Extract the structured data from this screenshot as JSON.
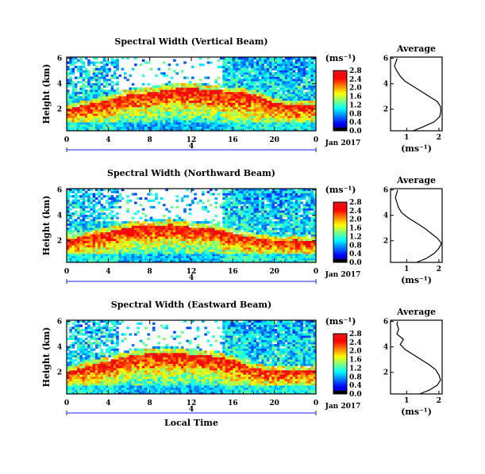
{
  "chart_data": [
    {
      "type": "heatmap",
      "title": "Spectral Width (Vertical Beam)",
      "ylabel": "Height (km)",
      "xticks": [
        "0",
        "4",
        "8",
        "12",
        "16",
        "20",
        "0"
      ],
      "xlim": [
        0,
        24
      ],
      "yticks": [
        "2",
        "4",
        "6"
      ],
      "ylim": [
        0.3,
        6.1
      ],
      "date_label": "Jan 2017",
      "day_label": "4",
      "colorbar": {
        "unit": "(ms⁻¹)",
        "ticks": [
          "0.0",
          "0.4",
          "0.8",
          "1.2",
          "1.6",
          "2.0",
          "2.4",
          "2.8"
        ],
        "range": [
          0,
          2.8
        ]
      },
      "top_y": [
        2.0,
        2.4,
        2.7,
        3.2,
        3.3,
        3.6,
        3.7,
        3.5,
        3.4,
        3.2,
        2.5,
        2.3,
        2.4
      ],
      "average_profile": {
        "title": "Average",
        "xlabel": "(ms⁻¹)",
        "xticks": [
          "1",
          "2"
        ],
        "xlim": [
          0.5,
          2.1
        ],
        "yticks": [
          "2",
          "4",
          "6"
        ],
        "height": [
          0.3,
          0.6,
          1.0,
          1.4,
          1.8,
          2.2,
          2.6,
          3.0,
          3.4,
          3.8,
          4.2,
          4.6,
          5.0,
          5.4,
          5.8,
          6.0
        ],
        "width": [
          1.2,
          1.5,
          1.85,
          2.02,
          2.06,
          2.05,
          1.95,
          1.7,
          1.45,
          1.2,
          0.95,
          0.8,
          0.7,
          0.62,
          0.68,
          0.7
        ]
      }
    },
    {
      "type": "heatmap",
      "title": "Spectral Width (Northward Beam)",
      "ylabel": "Height (km)",
      "xticks": [
        "0",
        "4",
        "8",
        "12",
        "16",
        "20",
        "0"
      ],
      "xlim": [
        0,
        24
      ],
      "yticks": [
        "2",
        "4",
        "6"
      ],
      "ylim": [
        0.3,
        6.1
      ],
      "date_label": "Jan 2017",
      "day_label": "4",
      "colorbar": {
        "unit": "(ms⁻¹)",
        "ticks": [
          "0.0",
          "0.4",
          "0.8",
          "1.2",
          "1.6",
          "2.0",
          "2.4",
          "2.8"
        ],
        "range": [
          0,
          2.8
        ]
      },
      "top_y": [
        2.1,
        2.4,
        2.7,
        3.1,
        3.2,
        3.3,
        3.1,
        3.0,
        2.6,
        2.3,
        2.0,
        2.1,
        2.0
      ],
      "average_profile": {
        "title": "Average",
        "xlabel": "(ms⁻¹)",
        "xticks": [
          "1",
          "2"
        ],
        "xlim": [
          0.5,
          2.1
        ],
        "yticks": [
          "2",
          "4",
          "6"
        ],
        "height": [
          0.3,
          0.6,
          1.0,
          1.4,
          1.8,
          2.2,
          2.6,
          3.0,
          3.4,
          3.8,
          4.2,
          4.6,
          5.0,
          5.4,
          5.8,
          6.0
        ],
        "width": [
          1.3,
          1.6,
          1.85,
          2.0,
          2.08,
          1.95,
          1.75,
          1.55,
          1.3,
          1.05,
          0.85,
          0.75,
          0.7,
          0.65,
          0.7,
          0.72
        ]
      }
    },
    {
      "type": "heatmap",
      "title": "Spectral Width (Eastward Beam)",
      "ylabel": "Height (km)",
      "xticks": [
        "0",
        "4",
        "8",
        "12",
        "16",
        "20",
        "0"
      ],
      "xlim": [
        0,
        24
      ],
      "yticks": [
        "2",
        "4",
        "6"
      ],
      "ylim": [
        0.3,
        6.1
      ],
      "date_label": "Jan 2017",
      "day_label": "4",
      "xlabel": "Local Time",
      "colorbar": {
        "unit": "(ms⁻¹)",
        "ticks": [
          "0.0",
          "0.4",
          "0.8",
          "1.2",
          "1.6",
          "2.0",
          "2.4",
          "2.8"
        ],
        "range": [
          0,
          2.8
        ]
      },
      "top_y": [
        2.0,
        2.5,
        2.9,
        3.3,
        3.5,
        3.6,
        3.4,
        3.3,
        3.0,
        2.3,
        2.2,
        2.2,
        2.1
      ],
      "average_profile": {
        "title": "Average",
        "xlabel": "(ms⁻¹)",
        "xticks": [
          "1",
          "2"
        ],
        "xlim": [
          0.5,
          2.1
        ],
        "yticks": [
          "2",
          "4",
          "6"
        ],
        "height": [
          0.3,
          0.6,
          1.0,
          1.4,
          1.8,
          2.2,
          2.6,
          3.0,
          3.4,
          3.8,
          4.2,
          4.6,
          5.0,
          5.4,
          5.8,
          6.0
        ],
        "width": [
          1.4,
          1.7,
          1.95,
          2.05,
          2.0,
          1.9,
          1.7,
          1.45,
          1.2,
          0.95,
          0.8,
          0.9,
          0.7,
          0.75,
          0.7,
          0.72
        ]
      }
    }
  ],
  "colors": {
    "colormap": [
      "#00007f",
      "#0000ff",
      "#007fff",
      "#00ffff",
      "#7fff7f",
      "#ffff00",
      "#ff7f00",
      "#ff0000",
      "#e3171a"
    ],
    "missing": "#ffffff",
    "axis": "#000000",
    "day_line": "#1c1cff"
  }
}
